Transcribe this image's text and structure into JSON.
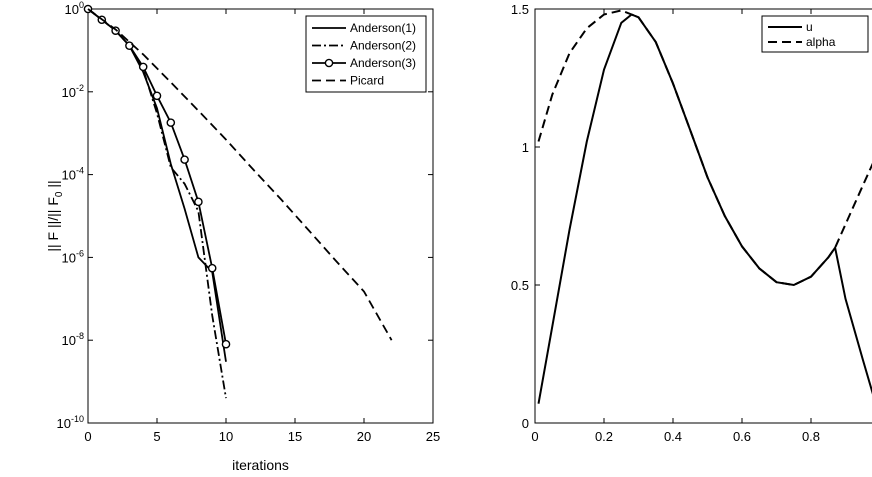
{
  "chart_data": [
    {
      "type": "line",
      "xlabel": "iterations",
      "ylabel": "|| F  ||/|| F",
      "ylabel_sub": "0",
      "ylabel_tail": " ||",
      "yscale": "log",
      "xlim": [
        0,
        25
      ],
      "ylim": [
        1e-10,
        1
      ],
      "xticks": [
        0,
        5,
        10,
        15,
        20,
        25
      ],
      "yticks": [
        {
          "value": 1,
          "base": "10",
          "exp": "0"
        },
        {
          "value": 0.01,
          "base": "10",
          "exp": "-2"
        },
        {
          "value": 0.0001,
          "base": "10",
          "exp": "-4"
        },
        {
          "value": 1e-06,
          "base": "10",
          "exp": "-6"
        },
        {
          "value": 1e-08,
          "base": "10",
          "exp": "-8"
        },
        {
          "value": 1e-10,
          "base": "10",
          "exp": "-10"
        }
      ],
      "legend_position": "top-right",
      "series": [
        {
          "name": "Anderson(1)",
          "style": "solid",
          "marker": "none",
          "x": [
            0,
            1,
            2,
            3,
            4,
            5,
            6,
            7,
            8,
            9,
            10
          ],
          "y": [
            1,
            0.55,
            0.3,
            0.13,
            0.03,
            0.004,
            0.00018,
            1.5e-05,
            1e-06,
            4.5e-07,
            3e-09
          ]
        },
        {
          "name": "Anderson(2)",
          "style": "dashdot",
          "marker": "none",
          "x": [
            0,
            1,
            2,
            3,
            4,
            5,
            6,
            7,
            8,
            9,
            10
          ],
          "y": [
            1,
            0.55,
            0.3,
            0.13,
            0.035,
            0.003,
            0.00015,
            6e-05,
            1.3e-05,
            4e-08,
            4e-10
          ]
        },
        {
          "name": "Anderson(3)",
          "style": "solid",
          "marker": "circle",
          "x": [
            0,
            1,
            2,
            3,
            4,
            5,
            6,
            7,
            8,
            9,
            10
          ],
          "y": [
            1,
            0.55,
            0.3,
            0.13,
            0.04,
            0.008,
            0.0018,
            0.00023,
            2.2e-05,
            5.5e-07,
            8e-09
          ]
        },
        {
          "name": "Picard",
          "style": "dashed",
          "marker": "none",
          "x": [
            0,
            2,
            4,
            6,
            8,
            10,
            12,
            14,
            16,
            18,
            20,
            22
          ],
          "y": [
            1,
            0.32,
            0.08,
            0.017,
            0.0035,
            0.0007,
            0.00013,
            2.5e-05,
            4.5e-06,
            8e-07,
            1.5e-07,
            1e-08
          ]
        }
      ]
    },
    {
      "type": "line",
      "xlabel": "",
      "ylabel": "",
      "xlim": [
        0,
        1
      ],
      "ylim": [
        0,
        1.5
      ],
      "xticks": [
        0,
        0.2,
        0.4,
        0.6,
        0.8
      ],
      "yticks": [
        0,
        0.5,
        1,
        1.5
      ],
      "legend_position": "top-right",
      "series": [
        {
          "name": "u",
          "style": "solid",
          "x": [
            0.01,
            0.05,
            0.1,
            0.15,
            0.2,
            0.25,
            0.28,
            0.3,
            0.35,
            0.4,
            0.45,
            0.5,
            0.55,
            0.6,
            0.65,
            0.7,
            0.75,
            0.8,
            0.85,
            0.87,
            0.9,
            0.95,
            0.99
          ],
          "y": [
            0.07,
            0.35,
            0.7,
            1.02,
            1.28,
            1.45,
            1.48,
            1.47,
            1.38,
            1.23,
            1.06,
            0.89,
            0.75,
            0.64,
            0.56,
            0.51,
            0.5,
            0.53,
            0.6,
            0.635,
            0.45,
            0.23,
            0.06
          ]
        },
        {
          "name": "alpha",
          "style": "dashed",
          "x": [
            0.01,
            0.05,
            0.1,
            0.15,
            0.2,
            0.25,
            0.28,
            0.3,
            0.35,
            0.4,
            0.45,
            0.5,
            0.55,
            0.6,
            0.65,
            0.7,
            0.75,
            0.8,
            0.85,
            0.87,
            0.9,
            0.95,
            0.99
          ],
          "y": [
            1.02,
            1.19,
            1.34,
            1.43,
            1.48,
            1.495,
            1.48,
            1.47,
            1.38,
            1.23,
            1.06,
            0.89,
            0.75,
            0.64,
            0.56,
            0.51,
            0.5,
            0.53,
            0.6,
            0.635,
            0.72,
            0.86,
            0.97
          ]
        }
      ]
    }
  ]
}
